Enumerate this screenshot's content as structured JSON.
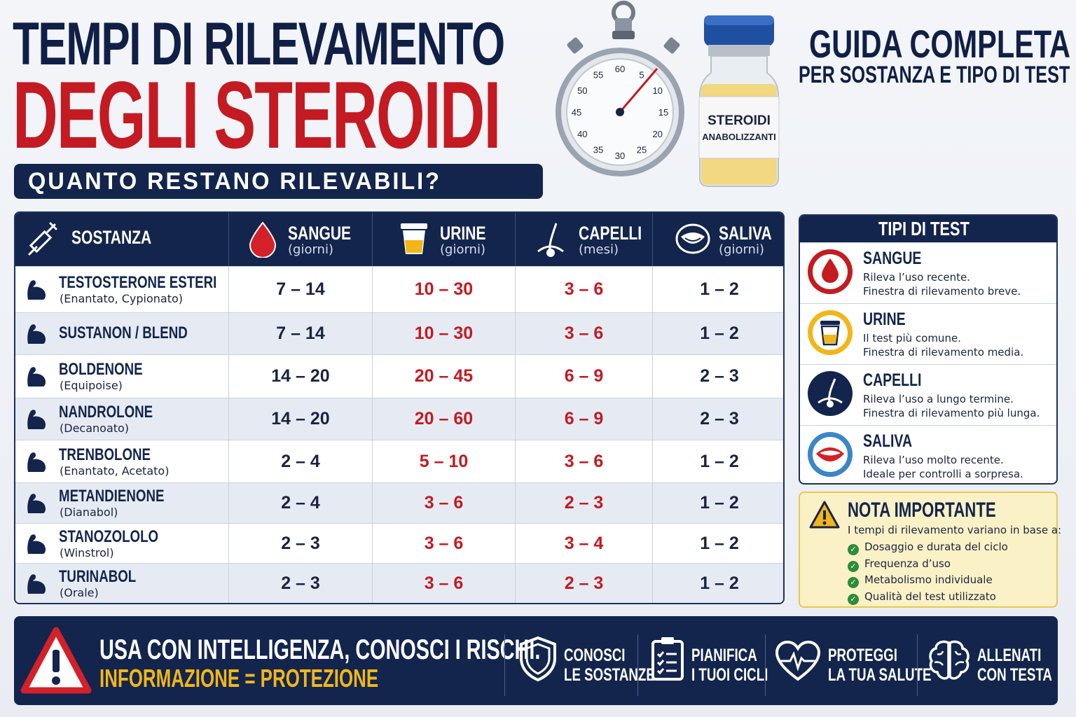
{
  "header": {
    "title_line1": "TEMPI DI RILEVAMENTO",
    "title_line2": "DEGLI STEROIDI",
    "subtitle": "QUANTO RESTANO RILEVABILI?",
    "guide_line1": "GUIDA COMPLETA",
    "guide_line2": "PER SOSTANZA E TIPO DI TEST"
  },
  "stopwatch": {
    "numbers": [
      "60",
      "5",
      "10",
      "15",
      "20",
      "25",
      "30",
      "35",
      "40",
      "45",
      "50",
      "55"
    ]
  },
  "vial": {
    "label_line1": "STEROIDI",
    "label_line2": "ANABOLIZZANTI"
  },
  "table": {
    "headers": [
      {
        "label": "SOSTANZA",
        "unit": "",
        "icon": "syringe-icon"
      },
      {
        "label": "SANGUE",
        "unit": "(giorni)",
        "icon": "blood-drop-icon"
      },
      {
        "label": "URINE",
        "unit": "(giorni)",
        "icon": "urine-cup-icon"
      },
      {
        "label": "CAPELLI",
        "unit": "(mesi)",
        "icon": "hair-icon"
      },
      {
        "label": "SALIVA",
        "unit": "(giorni)",
        "icon": "mouth-icon"
      }
    ],
    "rows": [
      {
        "name": "TESTOSTERONE ESTERI",
        "sub": "(Enantato, Cypionato)",
        "sangue": "7 – 14",
        "urine": "10 – 30",
        "capelli": "3 – 6",
        "saliva": "1 – 2"
      },
      {
        "name": "SUSTANON / BLEND",
        "sub": "",
        "sangue": "7 – 14",
        "urine": "10 – 30",
        "capelli": "3 – 6",
        "saliva": "1 – 2"
      },
      {
        "name": "BOLDENONE",
        "sub": "(Equipoise)",
        "sangue": "14 – 20",
        "urine": "20 – 45",
        "capelli": "6 – 9",
        "saliva": "2 – 3"
      },
      {
        "name": "NANDROLONE",
        "sub": "(Decanoato)",
        "sangue": "14 – 20",
        "urine": "20 – 60",
        "capelli": "6 – 9",
        "saliva": "2 – 3"
      },
      {
        "name": "TRENBOLONE",
        "sub": "(Enantato, Acetato)",
        "sangue": "2 – 4",
        "urine": "5 – 10",
        "capelli": "3 – 6",
        "saliva": "1 – 2"
      },
      {
        "name": "METANDIENONE",
        "sub": "(Dianabol)",
        "sangue": "2 – 4",
        "urine": "3 – 6",
        "capelli": "2 – 3",
        "saliva": "1 – 2"
      },
      {
        "name": "STANOZOLOLO",
        "sub": "(Winstrol)",
        "sangue": "2 – 3",
        "urine": "3 – 6",
        "capelli": "3 – 4",
        "saliva": "1 – 2"
      },
      {
        "name": "TURINABOL",
        "sub": "(Orale)",
        "sangue": "2 – 3",
        "urine": "3 – 6",
        "capelli": "2 – 3",
        "saliva": "1 – 2"
      }
    ]
  },
  "tipi_di_test": {
    "title": "TIPI DI TEST",
    "items": [
      {
        "name": "SANGUE",
        "line1": "Rileva l’uso recente.",
        "line2": "Finestra di rilevamento breve.",
        "icon": "blood-drop-icon",
        "color": "#c41a22"
      },
      {
        "name": "URINE",
        "line1": "Il test più comune.",
        "line2": "Finestra di rilevamento media.",
        "icon": "urine-cup-icon",
        "color": "#f2b619"
      },
      {
        "name": "CAPELLI",
        "line1": "Rileva l’uso a lungo termine.",
        "line2": "Finestra di rilevamento più lunga.",
        "icon": "hair-icon",
        "color": "#13254d"
      },
      {
        "name": "SALIVA",
        "line1": "Rileva l’uso molto recente.",
        "line2": "Ideale per controlli a sorpresa.",
        "icon": "mouth-icon",
        "color": "#3a86c8"
      }
    ]
  },
  "nota": {
    "title": "NOTA IMPORTANTE",
    "intro": "I tempi di rilevamento variano in base a:",
    "items": [
      "Dosaggio e durata del ciclo",
      "Frequenza d’uso",
      "Metabolismo individuale",
      "Qualità del test utilizzato"
    ]
  },
  "footer": {
    "line1": "USA CON INTELLIGENZA, CONOSCI I RISCHI.",
    "line2": "INFORMAZIONE = PROTEZIONE",
    "items": [
      {
        "line1": "CONOSCI",
        "line2": "LE SOSTANZE",
        "icon": "shield-icon"
      },
      {
        "line1": "PIANIFICA",
        "line2": "I TUOI CICLI",
        "icon": "clipboard-icon"
      },
      {
        "line1": "PROTEGGI",
        "line2": "LA TUA SALUTE",
        "icon": "heart-pulse-icon"
      },
      {
        "line1": "ALLENATI",
        "line2": "CON TESTA",
        "icon": "brain-icon"
      }
    ]
  },
  "colors": {
    "navy": "#13254d",
    "red": "#c41a22",
    "yellow": "#f2b619",
    "note_bg": "#fbf1c6"
  }
}
